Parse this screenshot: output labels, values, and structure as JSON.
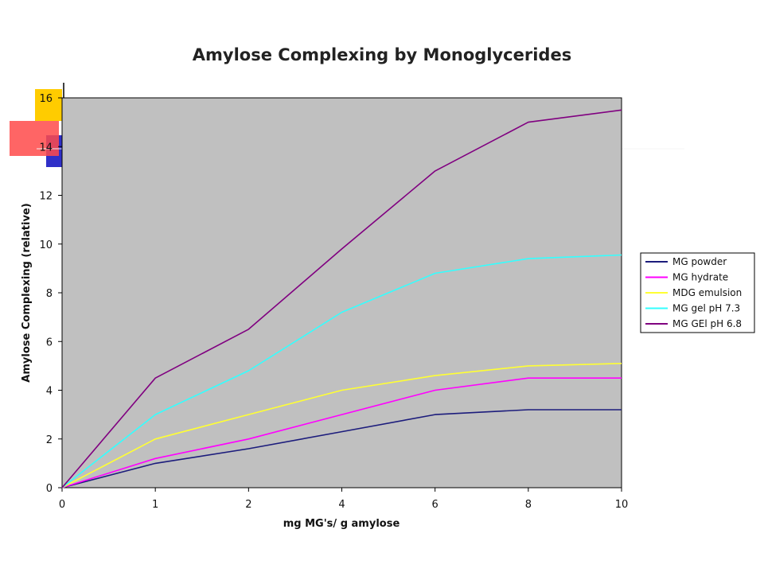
{
  "chart_data": {
    "type": "line",
    "title": "Amylose Complexing by Monoglycerides",
    "xlabel": "mg MG's/ g amylose",
    "ylabel": "Amylose Complexing (relative)",
    "categories": [
      "0",
      "1",
      "2",
      "4",
      "6",
      "8",
      "10"
    ],
    "ylim": [
      0,
      16
    ],
    "yticks": [
      "0",
      "2",
      "4",
      "6",
      "8",
      "10",
      "12",
      "14",
      "16"
    ],
    "plot_background": "#c0c0c0",
    "grid": false,
    "legend_position": "right",
    "series": [
      {
        "name": "MG powder",
        "color": "#1c1c7c",
        "values": [
          0,
          1.0,
          1.6,
          2.3,
          3.0,
          3.2,
          3.2
        ]
      },
      {
        "name": "MG hydrate",
        "color": "#ff00ff",
        "values": [
          0,
          1.2,
          2.0,
          3.0,
          4.0,
          4.5,
          4.5
        ]
      },
      {
        "name": "MDG emulsion",
        "color": "#ffff33",
        "values": [
          0,
          2.0,
          3.0,
          4.0,
          4.6,
          5.0,
          5.1
        ]
      },
      {
        "name": "MG gel pH 7.3",
        "color": "#33ffff",
        "values": [
          0,
          3.0,
          4.8,
          7.2,
          8.8,
          9.4,
          9.55
        ]
      },
      {
        "name": "MG GEl pH 6.8",
        "color": "#800080",
        "values": [
          0,
          4.5,
          6.5,
          9.8,
          13.0,
          15.0,
          15.5
        ]
      }
    ]
  }
}
